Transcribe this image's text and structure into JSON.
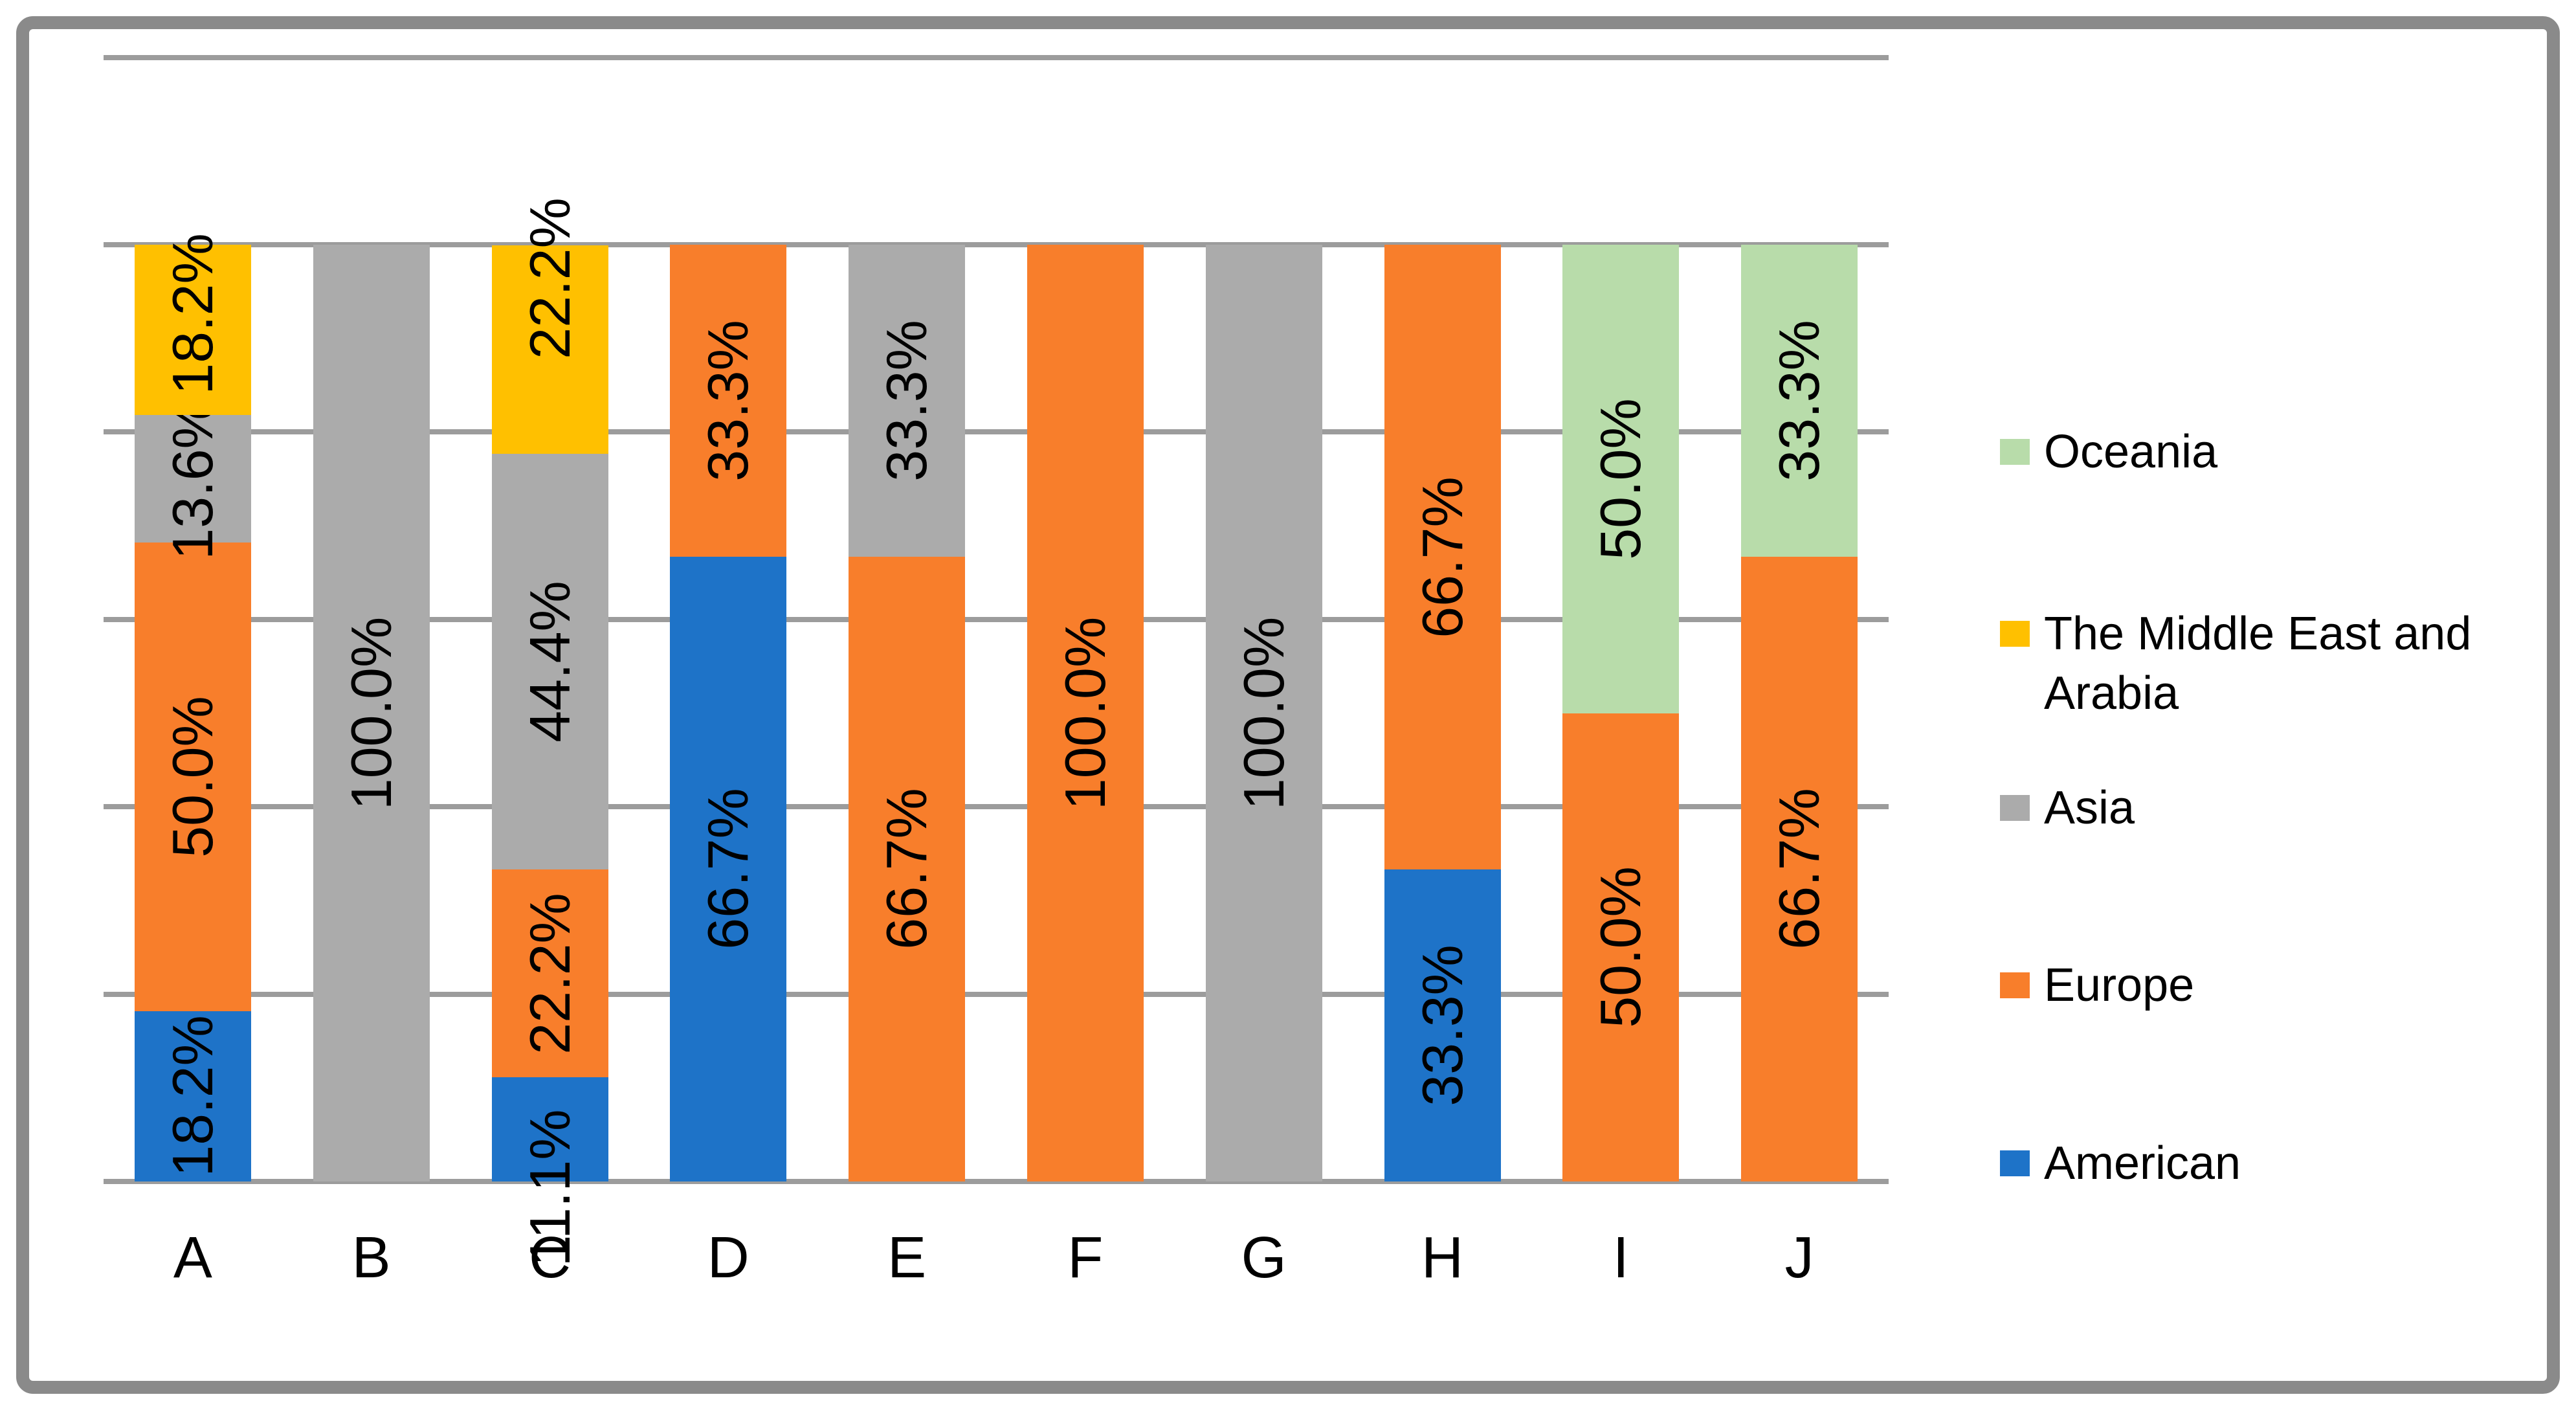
{
  "chart_data": {
    "type": "bar",
    "stacking": "percent",
    "orientation": "vertical-columns",
    "title": "",
    "xlabel": "",
    "ylabel": "",
    "ylim": [
      0,
      120
    ],
    "gridline_step_pct": 20,
    "y_axis_tick_labels_visible": false,
    "grid": true,
    "data_labels": {
      "format": "one-decimal-percent",
      "rotation_deg": -90,
      "color": "#000000"
    },
    "legend": {
      "position": "right",
      "order_top_to_bottom": [
        "Oceania",
        "The Middle East and Arabia",
        "Asia",
        "Europe",
        "American"
      ]
    },
    "categories": [
      "A",
      "B",
      "C",
      "D",
      "E",
      "F",
      "G",
      "H",
      "I",
      "J"
    ],
    "series": [
      {
        "name": "American",
        "color": "#1E73C8",
        "values": [
          18.2,
          0,
          11.1,
          66.7,
          0,
          0,
          0,
          33.3,
          0,
          0
        ]
      },
      {
        "name": "Europe",
        "color": "#F87E2B",
        "values": [
          50.0,
          0,
          22.2,
          33.3,
          66.7,
          100.0,
          0,
          66.7,
          50.0,
          66.7
        ]
      },
      {
        "name": "Asia",
        "color": "#ABABAB",
        "values": [
          13.6,
          100.0,
          44.4,
          0,
          33.3,
          0,
          100.0,
          0,
          0,
          0
        ]
      },
      {
        "name": "The Middle East and Arabia",
        "color": "#FFC000",
        "values": [
          18.2,
          0,
          22.2,
          0,
          0,
          0,
          0,
          0,
          0,
          0
        ]
      },
      {
        "name": "Oceania",
        "color": "#B8DCAA",
        "values": [
          0,
          0,
          0,
          0,
          0,
          0,
          0,
          0,
          50.0,
          33.3
        ]
      }
    ]
  },
  "colors": {
    "gridline": "#9C9C9C",
    "axis_line": "#9C9C9C",
    "frame_border": "#8A8A8A",
    "background": "#FFFFFF",
    "text": "#000000"
  }
}
